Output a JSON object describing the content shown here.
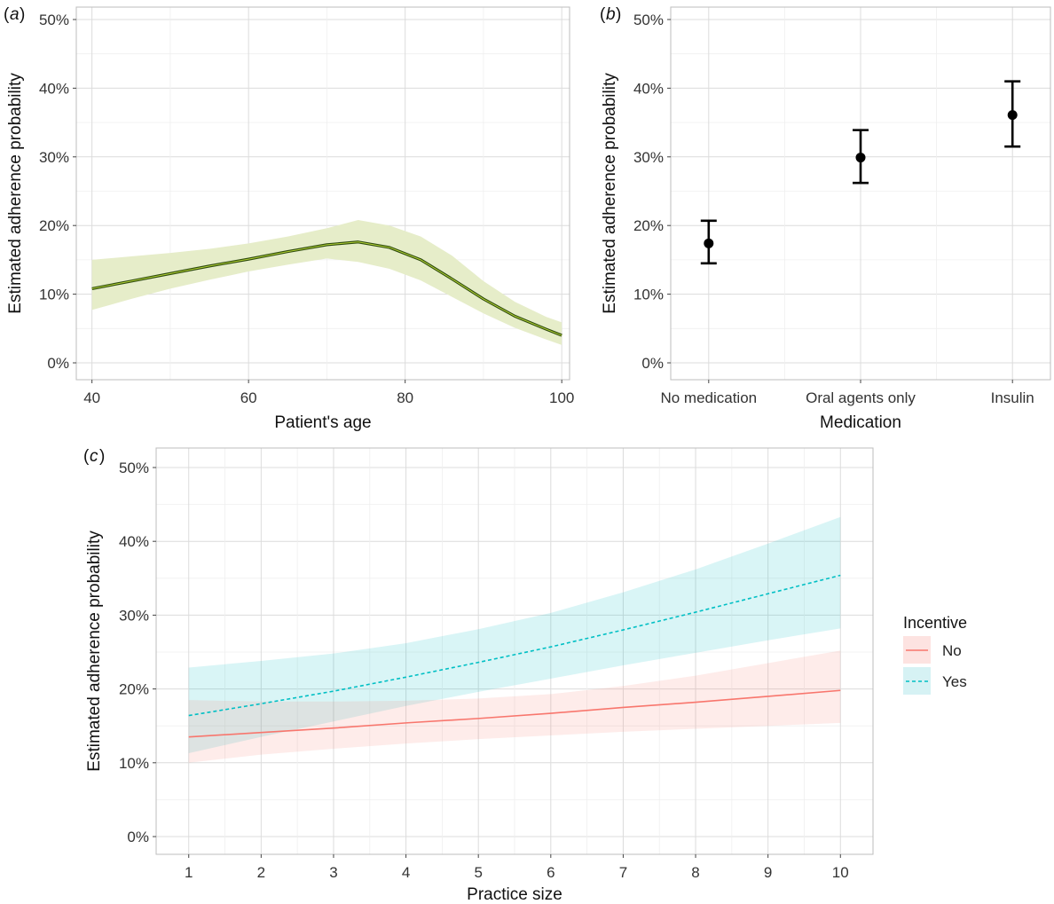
{
  "panels": {
    "a": {
      "tag": "a",
      "xlabel": "Patient's age",
      "ylabel": "Estimated adherence probability",
      "xticks": [
        "40",
        "60",
        "80",
        "100"
      ],
      "yticks": [
        "0%",
        "10%",
        "20%",
        "30%",
        "40%",
        "50%"
      ]
    },
    "b": {
      "tag": "b",
      "xlabel": "Medication",
      "ylabel": "Estimated adherence probability",
      "xticks": [
        "No medication",
        "Oral agents only",
        "Insulin"
      ],
      "yticks": [
        "0%",
        "10%",
        "20%",
        "30%",
        "40%",
        "50%"
      ]
    },
    "c": {
      "tag": "c",
      "xlabel": "Practice size",
      "ylabel": "Estimated adherence probability",
      "xticks": [
        "1",
        "2",
        "3",
        "4",
        "5",
        "6",
        "7",
        "8",
        "9",
        "10"
      ],
      "yticks": [
        "0%",
        "10%",
        "20%",
        "30%",
        "40%",
        "50%"
      ]
    }
  },
  "legend": {
    "title": "Incentive",
    "items": [
      {
        "label": "No",
        "color": "#F8766D",
        "style": "solid"
      },
      {
        "label": "Yes",
        "color": "#00BFC4",
        "style": "dashed"
      }
    ]
  },
  "colors": {
    "line_a": "#2d4a0e",
    "line_a_highlight": "#b5d334",
    "ribbon_a": "#e6edc9",
    "no": "#F8766D",
    "yes": "#00BFC4",
    "ribbon_no": "#fde3e1",
    "ribbon_yes": "#d6f2f4"
  },
  "chart_data": [
    {
      "panel": "a",
      "type": "line",
      "xlabel": "Patient's age",
      "ylabel": "Estimated adherence probability",
      "xlim": [
        38,
        101
      ],
      "ylim": [
        0,
        0.5
      ],
      "x": [
        40,
        45,
        50,
        55,
        60,
        65,
        70,
        74,
        78,
        82,
        86,
        90,
        94,
        98,
        100
      ],
      "y": [
        0.108,
        0.119,
        0.13,
        0.141,
        0.151,
        0.162,
        0.172,
        0.176,
        0.168,
        0.15,
        0.122,
        0.093,
        0.068,
        0.049,
        0.04
      ],
      "lower": [
        0.077,
        0.093,
        0.108,
        0.121,
        0.133,
        0.143,
        0.152,
        0.147,
        0.137,
        0.12,
        0.096,
        0.072,
        0.051,
        0.034,
        0.026
      ],
      "upper": [
        0.15,
        0.155,
        0.16,
        0.166,
        0.174,
        0.184,
        0.196,
        0.208,
        0.2,
        0.184,
        0.156,
        0.119,
        0.089,
        0.067,
        0.059
      ]
    },
    {
      "panel": "b",
      "type": "scatter",
      "xlabel": "Medication",
      "ylabel": "Estimated adherence probability",
      "ylim": [
        0,
        0.5
      ],
      "categories": [
        "No medication",
        "Oral agents only",
        "Insulin"
      ],
      "values": [
        0.174,
        0.299,
        0.361
      ],
      "lower": [
        0.145,
        0.262,
        0.315
      ],
      "upper": [
        0.207,
        0.339,
        0.41
      ]
    },
    {
      "panel": "c",
      "type": "line",
      "xlabel": "Practice size",
      "ylabel": "Estimated adherence probability",
      "xlim": [
        0.55,
        10.45
      ],
      "ylim": [
        0,
        0.5
      ],
      "x": [
        1,
        2,
        3,
        4,
        5,
        6,
        7,
        8,
        9,
        10
      ],
      "series": [
        {
          "name": "No",
          "values": [
            0.135,
            0.141,
            0.147,
            0.154,
            0.16,
            0.167,
            0.175,
            0.182,
            0.19,
            0.198
          ],
          "lower": [
            0.1,
            0.111,
            0.119,
            0.126,
            0.132,
            0.137,
            0.142,
            0.146,
            0.15,
            0.154
          ],
          "upper": [
            0.185,
            0.183,
            0.183,
            0.184,
            0.187,
            0.193,
            0.204,
            0.218,
            0.235,
            0.252
          ]
        },
        {
          "name": "Yes",
          "values": [
            0.164,
            0.18,
            0.197,
            0.216,
            0.236,
            0.257,
            0.28,
            0.304,
            0.329,
            0.354
          ],
          "lower": [
            0.113,
            0.135,
            0.156,
            0.177,
            0.196,
            0.214,
            0.232,
            0.249,
            0.266,
            0.282
          ],
          "upper": [
            0.229,
            0.238,
            0.248,
            0.262,
            0.281,
            0.303,
            0.331,
            0.362,
            0.397,
            0.433
          ]
        }
      ]
    }
  ]
}
